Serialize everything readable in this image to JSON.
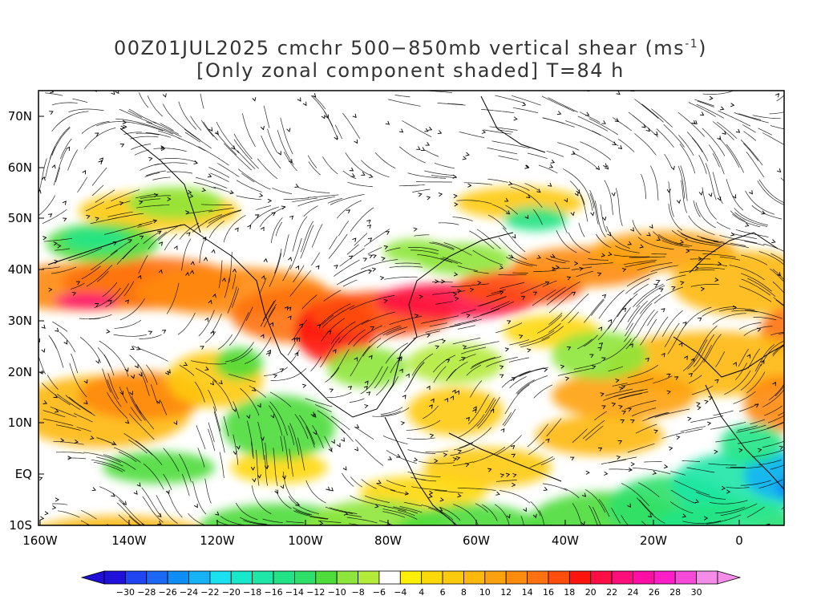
{
  "title": {
    "line1": "00Z01JUL2025 cmchr 500−850mb vertical shear (ms",
    "line1_sup": "-1",
    "line1_end": ")",
    "line2": "[Only zonal component shaded] T=84 h"
  },
  "map": {
    "lat_labels": [
      "70N",
      "60N",
      "50N",
      "40N",
      "30N",
      "20N",
      "10N",
      "EQ",
      "10S"
    ],
    "lon_labels": [
      "160W",
      "140W",
      "120W",
      "100W",
      "80W",
      "60W",
      "40W",
      "20W",
      "0"
    ],
    "colors": {
      "frame": "#000000",
      "coast": "#000000",
      "streamline": "#000000"
    }
  },
  "colorbar": {
    "levels": [
      "-30",
      "-28",
      "-26",
      "-24",
      "-22",
      "-20",
      "-18",
      "-16",
      "-14",
      "-12",
      "-10",
      "-8",
      "-6",
      "-4",
      "4",
      "6",
      "8",
      "10",
      "12",
      "14",
      "16",
      "18",
      "20",
      "22",
      "24",
      "26",
      "28",
      "30"
    ],
    "colors": [
      "#1e10d6",
      "#1f46f0",
      "#1c68f5",
      "#0e8ef5",
      "#17b2f5",
      "#1be0f0",
      "#17e8c9",
      "#1de6a6",
      "#22e486",
      "#2ee06a",
      "#4ddc3a",
      "#8ee63a",
      "#b4ea3a",
      "#ffffff",
      "#fef005",
      "#fed808",
      "#feca0e",
      "#feb80e",
      "#fea10e",
      "#fe8a0e",
      "#fe710e",
      "#fe4e0e",
      "#fe150e",
      "#fe0e44",
      "#fe0e7a",
      "#fe0ea4",
      "#fe1ec8",
      "#f74ad8",
      "#f48ce8"
    ],
    "low_end_color": "#1e10d6",
    "high_end_color": "#f48ce8"
  }
}
